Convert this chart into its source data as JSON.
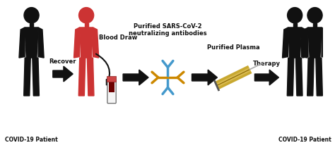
{
  "bg_color": "#ffffff",
  "figure_size": [
    4.74,
    2.13
  ],
  "dpi": 100,
  "labels": {
    "covid_patient_left": "COVID-19 Patient",
    "covid_patient_right": "COVID-19 Patient",
    "recover": "Recover",
    "blood_draw": "Blood Draw",
    "antibodies": "Purified SARS-CoV-2\nneutralizing antibodies",
    "plasma": "Purified Plasma",
    "therapy": "Therapy"
  },
  "colors": {
    "black": "#111111",
    "red_person": "#cc3333",
    "antibody_blue": "#4499cc",
    "antibody_gold": "#cc8800",
    "blood_dark": "#6b0000",
    "syringe_gold": "#c8a830",
    "syringe_light": "#e8cc70",
    "syringe_gray": "#aaaaaa"
  },
  "font_size_label": 5.5,
  "font_size_step": 6.0
}
